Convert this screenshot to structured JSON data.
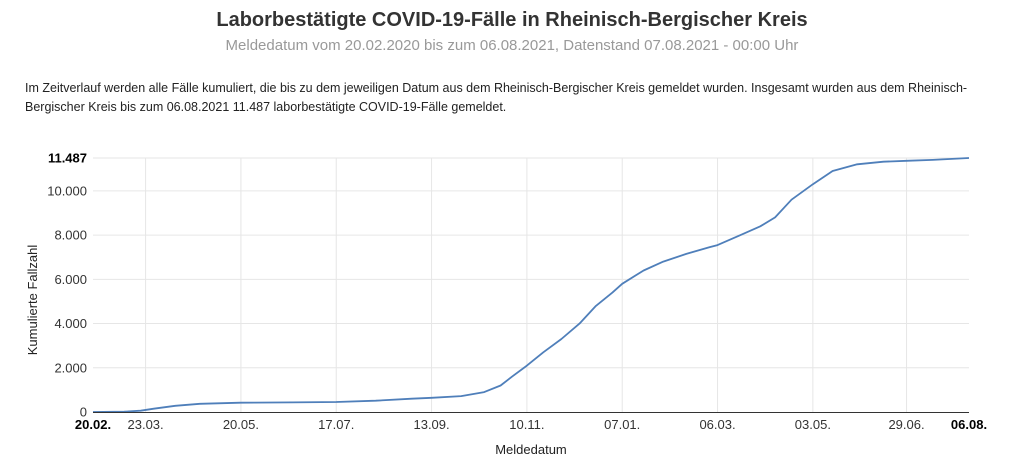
{
  "header": {
    "title": "Laborbestätigte COVID-19-Fälle in Rheinisch-Bergischer Kreis",
    "subtitle": "Meldedatum vom 20.02.2020 bis zum 06.08.2021, Datenstand 07.08.2021 - 00:00 Uhr"
  },
  "description": "Im Zeitverlauf werden alle Fälle kumuliert, die bis zu dem jeweiligen Datum aus dem Rheinisch-Bergischer Kreis gemeldet wurden. Insgesamt wurden aus dem Rheinisch-Bergischer Kreis bis zum 06.08.2021 11.487 laborbestätigte COVID-19-Fälle gemeldet.",
  "chart_data": {
    "type": "line",
    "xlabel": "Meldedatum",
    "ylabel": "Kumulierte Fallzahl",
    "ylim": [
      0,
      11487
    ],
    "grid": true,
    "line_color": "#4f7fba",
    "x_ticks": [
      {
        "label": "20.02.",
        "date": "2020-02-20",
        "bold": true
      },
      {
        "label": "23.03.",
        "date": "2020-03-23"
      },
      {
        "label": "20.05.",
        "date": "2020-05-20"
      },
      {
        "label": "17.07.",
        "date": "2020-07-17"
      },
      {
        "label": "13.09.",
        "date": "2020-09-13"
      },
      {
        "label": "10.11.",
        "date": "2020-11-10"
      },
      {
        "label": "07.01.",
        "date": "2021-01-07"
      },
      {
        "label": "06.03.",
        "date": "2021-03-06"
      },
      {
        "label": "03.05.",
        "date": "2021-05-03"
      },
      {
        "label": "29.06.",
        "date": "2021-06-29"
      },
      {
        "label": "06.08.",
        "date": "2021-08-06",
        "bold": true
      }
    ],
    "y_ticks": [
      {
        "label": "0",
        "value": 0
      },
      {
        "label": "2.000",
        "value": 2000
      },
      {
        "label": "4.000",
        "value": 4000
      },
      {
        "label": "6.000",
        "value": 6000
      },
      {
        "label": "8.000",
        "value": 8000
      },
      {
        "label": "10.000",
        "value": 10000
      },
      {
        "label": "11.487",
        "value": 11487,
        "bold": true
      }
    ],
    "series": [
      {
        "points": [
          [
            "2020-02-20",
            0
          ],
          [
            "2020-03-10",
            15
          ],
          [
            "2020-03-20",
            60
          ],
          [
            "2020-03-28",
            150
          ],
          [
            "2020-04-10",
            280
          ],
          [
            "2020-04-25",
            370
          ],
          [
            "2020-05-20",
            420
          ],
          [
            "2020-06-20",
            435
          ],
          [
            "2020-07-17",
            450
          ],
          [
            "2020-08-10",
            510
          ],
          [
            "2020-09-01",
            600
          ],
          [
            "2020-09-13",
            640
          ],
          [
            "2020-10-01",
            720
          ],
          [
            "2020-10-15",
            900
          ],
          [
            "2020-10-25",
            1200
          ],
          [
            "2020-11-01",
            1600
          ],
          [
            "2020-11-10",
            2100
          ],
          [
            "2020-11-20",
            2700
          ],
          [
            "2020-12-01",
            3300
          ],
          [
            "2020-12-12",
            4000
          ],
          [
            "2020-12-22",
            4800
          ],
          [
            "2021-01-01",
            5400
          ],
          [
            "2021-01-07",
            5800
          ],
          [
            "2021-01-20",
            6400
          ],
          [
            "2021-02-01",
            6800
          ],
          [
            "2021-02-15",
            7150
          ],
          [
            "2021-03-01",
            7450
          ],
          [
            "2021-03-06",
            7550
          ],
          [
            "2021-03-20",
            8000
          ],
          [
            "2021-04-01",
            8400
          ],
          [
            "2021-04-10",
            8800
          ],
          [
            "2021-04-20",
            9600
          ],
          [
            "2021-05-03",
            10300
          ],
          [
            "2021-05-15",
            10900
          ],
          [
            "2021-05-30",
            11200
          ],
          [
            "2021-06-15",
            11320
          ],
          [
            "2021-06-29",
            11360
          ],
          [
            "2021-07-15",
            11400
          ],
          [
            "2021-08-06",
            11487
          ]
        ]
      }
    ]
  }
}
